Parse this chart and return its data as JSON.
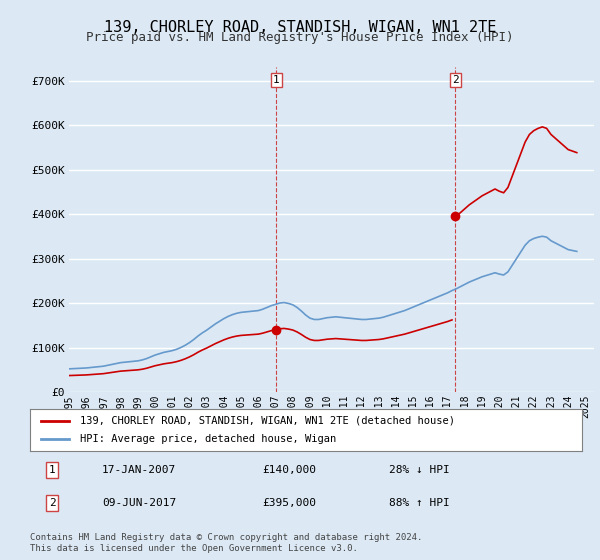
{
  "title": "139, CHORLEY ROAD, STANDISH, WIGAN, WN1 2TE",
  "subtitle": "Price paid vs. HM Land Registry's House Price Index (HPI)",
  "title_fontsize": 11,
  "subtitle_fontsize": 9,
  "ylabel_ticks": [
    "£0",
    "£100K",
    "£200K",
    "£300K",
    "£400K",
    "£500K",
    "£600K",
    "£700K"
  ],
  "ytick_vals": [
    0,
    100000,
    200000,
    300000,
    400000,
    500000,
    600000,
    700000
  ],
  "ylim": [
    0,
    730000
  ],
  "xlim_start": 1995.0,
  "xlim_end": 2025.5,
  "background_color": "#dce9f5",
  "plot_bg_color": "#dce9f5",
  "grid_color": "#ffffff",
  "red_color": "#cc0000",
  "blue_color": "#6699cc",
  "sale1_x": 2007.04,
  "sale1_y": 140000,
  "sale2_x": 2017.44,
  "sale2_y": 395000,
  "legend_label1": "139, CHORLEY ROAD, STANDISH, WIGAN, WN1 2TE (detached house)",
  "legend_label2": "HPI: Average price, detached house, Wigan",
  "annot1_num": "1",
  "annot1_date": "17-JAN-2007",
  "annot1_price": "£140,000",
  "annot1_hpi": "28% ↓ HPI",
  "annot2_num": "2",
  "annot2_date": "09-JUN-2017",
  "annot2_price": "£395,000",
  "annot2_hpi": "88% ↑ HPI",
  "footer": "Contains HM Land Registry data © Crown copyright and database right 2024.\nThis data is licensed under the Open Government Licence v3.0.",
  "hpi_years": [
    1995.0,
    1995.25,
    1995.5,
    1995.75,
    1996.0,
    1996.25,
    1996.5,
    1996.75,
    1997.0,
    1997.25,
    1997.5,
    1997.75,
    1998.0,
    1998.25,
    1998.5,
    1998.75,
    1999.0,
    1999.25,
    1999.5,
    1999.75,
    2000.0,
    2000.25,
    2000.5,
    2000.75,
    2001.0,
    2001.25,
    2001.5,
    2001.75,
    2002.0,
    2002.25,
    2002.5,
    2002.75,
    2003.0,
    2003.25,
    2003.5,
    2003.75,
    2004.0,
    2004.25,
    2004.5,
    2004.75,
    2005.0,
    2005.25,
    2005.5,
    2005.75,
    2006.0,
    2006.25,
    2006.5,
    2006.75,
    2007.0,
    2007.25,
    2007.5,
    2007.75,
    2008.0,
    2008.25,
    2008.5,
    2008.75,
    2009.0,
    2009.25,
    2009.5,
    2009.75,
    2010.0,
    2010.25,
    2010.5,
    2010.75,
    2011.0,
    2011.25,
    2011.5,
    2011.75,
    2012.0,
    2012.25,
    2012.5,
    2012.75,
    2013.0,
    2013.25,
    2013.5,
    2013.75,
    2014.0,
    2014.25,
    2014.5,
    2014.75,
    2015.0,
    2015.25,
    2015.5,
    2015.75,
    2016.0,
    2016.25,
    2016.5,
    2016.75,
    2017.0,
    2017.25,
    2017.5,
    2017.75,
    2018.0,
    2018.25,
    2018.5,
    2018.75,
    2019.0,
    2019.25,
    2019.5,
    2019.75,
    2020.0,
    2020.25,
    2020.5,
    2020.75,
    2021.0,
    2021.25,
    2021.5,
    2021.75,
    2022.0,
    2022.25,
    2022.5,
    2022.75,
    2023.0,
    2023.25,
    2023.5,
    2023.75,
    2024.0,
    2024.25,
    2024.5
  ],
  "hpi_values": [
    52000,
    52500,
    53000,
    53500,
    54000,
    55000,
    56000,
    57000,
    58000,
    60000,
    62000,
    64000,
    66000,
    67000,
    68000,
    69000,
    70000,
    72000,
    75000,
    79000,
    83000,
    86000,
    89000,
    91000,
    93000,
    96000,
    100000,
    105000,
    111000,
    118000,
    126000,
    133000,
    139000,
    146000,
    153000,
    159000,
    165000,
    170000,
    174000,
    177000,
    179000,
    180000,
    181000,
    182000,
    183000,
    186000,
    190000,
    194000,
    197000,
    200000,
    201000,
    199000,
    196000,
    190000,
    182000,
    173000,
    166000,
    163000,
    163000,
    165000,
    167000,
    168000,
    169000,
    168000,
    167000,
    166000,
    165000,
    164000,
    163000,
    163000,
    164000,
    165000,
    166000,
    168000,
    171000,
    174000,
    177000,
    180000,
    183000,
    187000,
    191000,
    195000,
    199000,
    203000,
    207000,
    211000,
    215000,
    219000,
    223000,
    228000,
    232000,
    237000,
    242000,
    247000,
    251000,
    255000,
    259000,
    262000,
    265000,
    268000,
    265000,
    263000,
    270000,
    285000,
    300000,
    315000,
    330000,
    340000,
    345000,
    348000,
    350000,
    348000,
    340000,
    335000,
    330000,
    325000,
    320000,
    318000,
    316000
  ]
}
